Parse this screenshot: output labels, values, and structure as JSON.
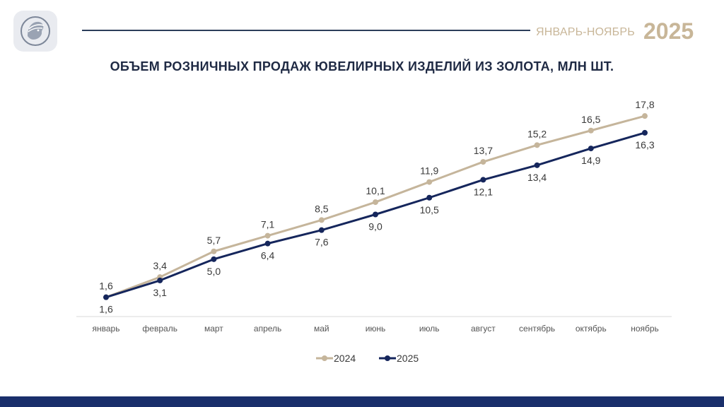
{
  "header": {
    "period": "ЯНВАРЬ-НОЯБРЬ",
    "year": "2025",
    "logo_icon": "profile-head-logo-icon"
  },
  "colors": {
    "series_2024": "#c5b59b",
    "series_2025": "#15265c",
    "footer": "#1a2f6b",
    "accent": "#c8b698"
  },
  "chart_data": {
    "type": "line",
    "title": "ОБЪЕМ РОЗНИЧНЫХ ПРОДАЖ ЮВЕЛИРНЫХ ИЗДЕЛИЙ ИЗ ЗОЛОТА, МЛН ШТ.",
    "categories": [
      "январь",
      "февраль",
      "март",
      "апрель",
      "май",
      "июнь",
      "июль",
      "август",
      "сентябрь",
      "октябрь",
      "ноябрь"
    ],
    "series": [
      {
        "name": "2024",
        "values": [
          1.6,
          3.4,
          5.7,
          7.1,
          8.5,
          10.1,
          11.9,
          13.7,
          15.2,
          16.5,
          17.8
        ],
        "labels": [
          "1,6",
          "3,4",
          "5,7",
          "7,1",
          "8,5",
          "10,1",
          "11,9",
          "13,7",
          "15,2",
          "16,5",
          "17,8"
        ],
        "color": "#c5b59b",
        "label_position": "above"
      },
      {
        "name": "2025",
        "values": [
          1.6,
          3.1,
          5.0,
          6.4,
          7.6,
          9.0,
          10.5,
          12.1,
          13.4,
          14.9,
          16.3
        ],
        "labels": [
          "1,6",
          "3,1",
          "5,0",
          "6,4",
          "7,6",
          "9,0",
          "10,5",
          "12,1",
          "13,4",
          "14,9",
          "16,3"
        ],
        "color": "#15265c",
        "label_position": "below"
      }
    ],
    "ylim": [
      0,
      18
    ],
    "grid": false,
    "legend_position": "bottom"
  }
}
